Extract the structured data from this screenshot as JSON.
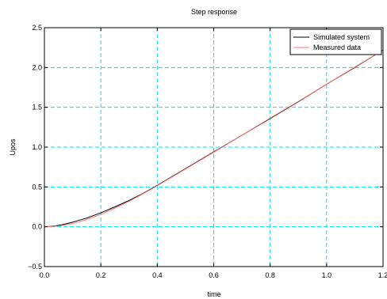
{
  "chart_data": {
    "type": "line",
    "title": "Step response",
    "xlabel": "time",
    "ylabel": "Upos",
    "xlim": [
      0.0,
      1.2
    ],
    "ylim": [
      -0.5,
      2.5
    ],
    "xticks": [
      0.0,
      0.2,
      0.4,
      0.6,
      0.8,
      1.0,
      1.2
    ],
    "yticks": [
      -0.5,
      0.0,
      0.5,
      1.0,
      1.5,
      2.0,
      2.5
    ],
    "xtick_labels": [
      "0.0",
      "0.2",
      "0.4",
      "0.6",
      "0.8",
      "1.0",
      "1.2"
    ],
    "ytick_labels": [
      "−0.5",
      "0.0",
      "0.5",
      "1.0",
      "1.5",
      "2.0",
      "2.5"
    ],
    "grid": true,
    "grid_color": "#00e5e5",
    "legend_position": "top-right",
    "series": [
      {
        "name": "Simulated system",
        "color": "#000000",
        "x": [
          0.0,
          0.02,
          0.04,
          0.06,
          0.08,
          0.1,
          0.12,
          0.15,
          0.2,
          0.25,
          0.3,
          0.35,
          0.4,
          0.5,
          0.6,
          0.7,
          0.8,
          0.9,
          1.0,
          1.1,
          1.2
        ],
        "y": [
          0.0,
          0.004,
          0.012,
          0.024,
          0.04,
          0.058,
          0.078,
          0.11,
          0.175,
          0.25,
          0.33,
          0.42,
          0.52,
          0.73,
          0.94,
          1.15,
          1.36,
          1.57,
          1.79,
          2.0,
          2.22
        ]
      },
      {
        "name": "Measured data",
        "color": "#ff7777",
        "x": [
          0.0,
          0.02,
          0.04,
          0.06,
          0.08,
          0.1,
          0.12,
          0.15,
          0.2,
          0.25,
          0.3,
          0.35,
          0.4,
          0.5,
          0.6,
          0.7,
          0.8,
          0.9,
          1.0,
          1.1,
          1.2
        ],
        "y": [
          0.0,
          0.002,
          0.006,
          0.014,
          0.026,
          0.04,
          0.058,
          0.09,
          0.155,
          0.235,
          0.32,
          0.415,
          0.515,
          0.725,
          0.935,
          1.15,
          1.365,
          1.575,
          1.79,
          2.005,
          2.22
        ]
      }
    ]
  }
}
